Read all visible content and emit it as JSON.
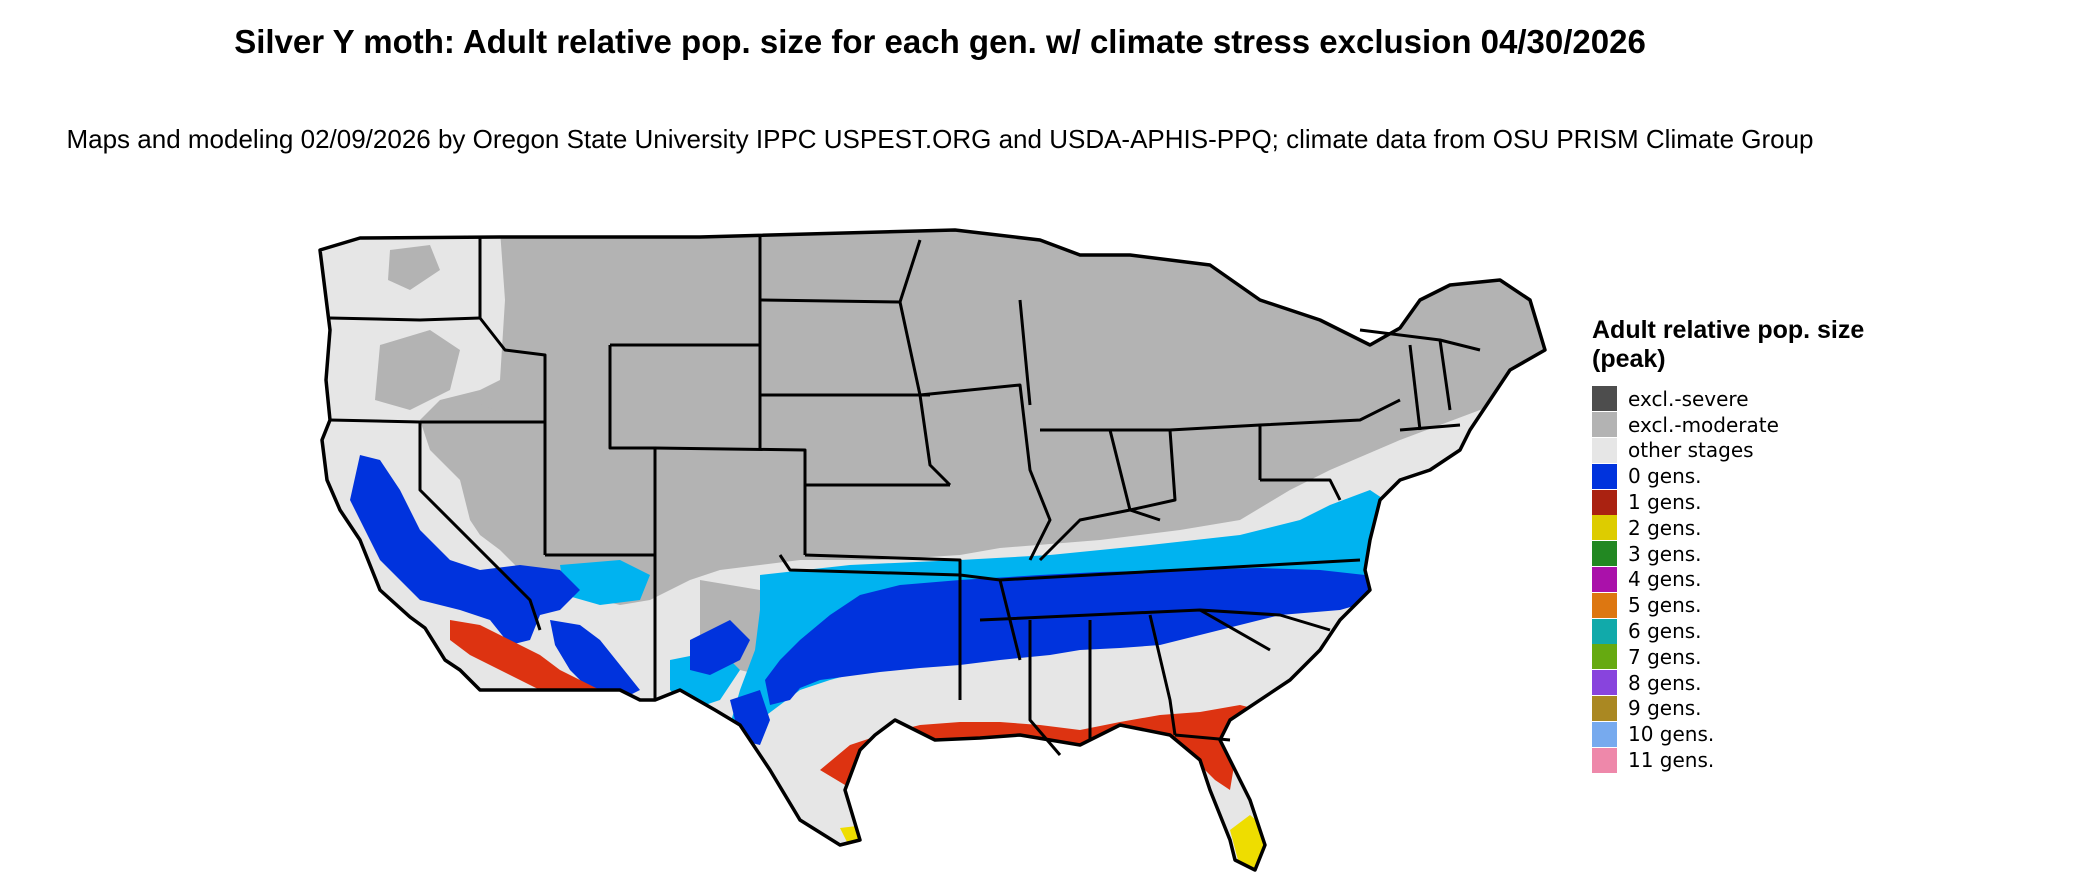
{
  "title": "Silver Y moth: Adult relative pop. size for each gen. w/ climate stress exclusion 04/30/2026",
  "subtitle": "Maps and modeling 02/09/2026 by Oregon State University IPPC USPEST.ORG and USDA-APHIS-PPQ; climate data from OSU PRISM Climate Group",
  "legend": {
    "title": "Adult relative pop. size (peak)",
    "items": [
      {
        "label": "excl.-severe",
        "color": "#4d4d4d"
      },
      {
        "label": "excl.-moderate",
        "color": "#b3b3b3"
      },
      {
        "label": "other stages",
        "color": "#e6e6e6"
      },
      {
        "label": "0 gens.",
        "color": "#0033dd"
      },
      {
        "label": "1 gens.",
        "color": "#aa2211"
      },
      {
        "label": "2 gens.",
        "color": "#ddcc00"
      },
      {
        "label": "3 gens.",
        "color": "#228822"
      },
      {
        "label": "4 gens.",
        "color": "#aa11aa"
      },
      {
        "label": "5 gens.",
        "color": "#dd7711"
      },
      {
        "label": "6 gens.",
        "color": "#11aaaa"
      },
      {
        "label": "7 gens.",
        "color": "#66aa11"
      },
      {
        "label": "8 gens.",
        "color": "#8844dd"
      },
      {
        "label": "9 gens.",
        "color": "#aa8822"
      },
      {
        "label": "10 gens.",
        "color": "#77aaee"
      },
      {
        "label": "11 gens.",
        "color": "#ee88aa"
      }
    ]
  },
  "map_colors": {
    "excluded_moderate": "#b3b3b3",
    "other_stages": "#e6e6e6",
    "zero_gens_light": "#00b3f0",
    "zero_gens_dark": "#0033dd",
    "one_gen_red": "#dd3311",
    "two_gens_yellow": "#eedd00",
    "border": "#000000"
  }
}
